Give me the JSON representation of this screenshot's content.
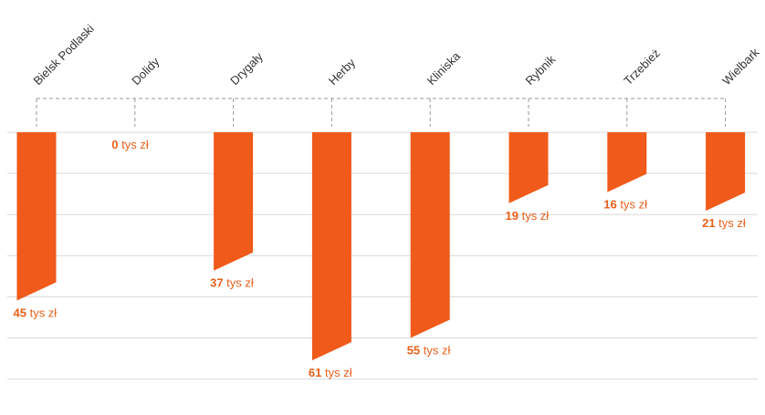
{
  "chart_data": {
    "type": "bar",
    "orientation": "downward",
    "categories": [
      "Bielsk Podlaski",
      "Dolidy",
      "Drygały",
      "Herby",
      "Kliniska",
      "Rybnik",
      "Trzebież",
      "Wielbark"
    ],
    "values": [
      45,
      0,
      37,
      61,
      55,
      19,
      16,
      21
    ],
    "unit": "tys zł",
    "data_labels": [
      "45",
      "0",
      "37",
      "61",
      "55",
      "19",
      "16",
      "21"
    ],
    "ylim": [
      0,
      60
    ],
    "grid": true,
    "bar_color": "#f05a1a",
    "label_color": "#e8601c",
    "grid_color": "#d9d9d9",
    "connector_color": "#9a9a9a"
  }
}
